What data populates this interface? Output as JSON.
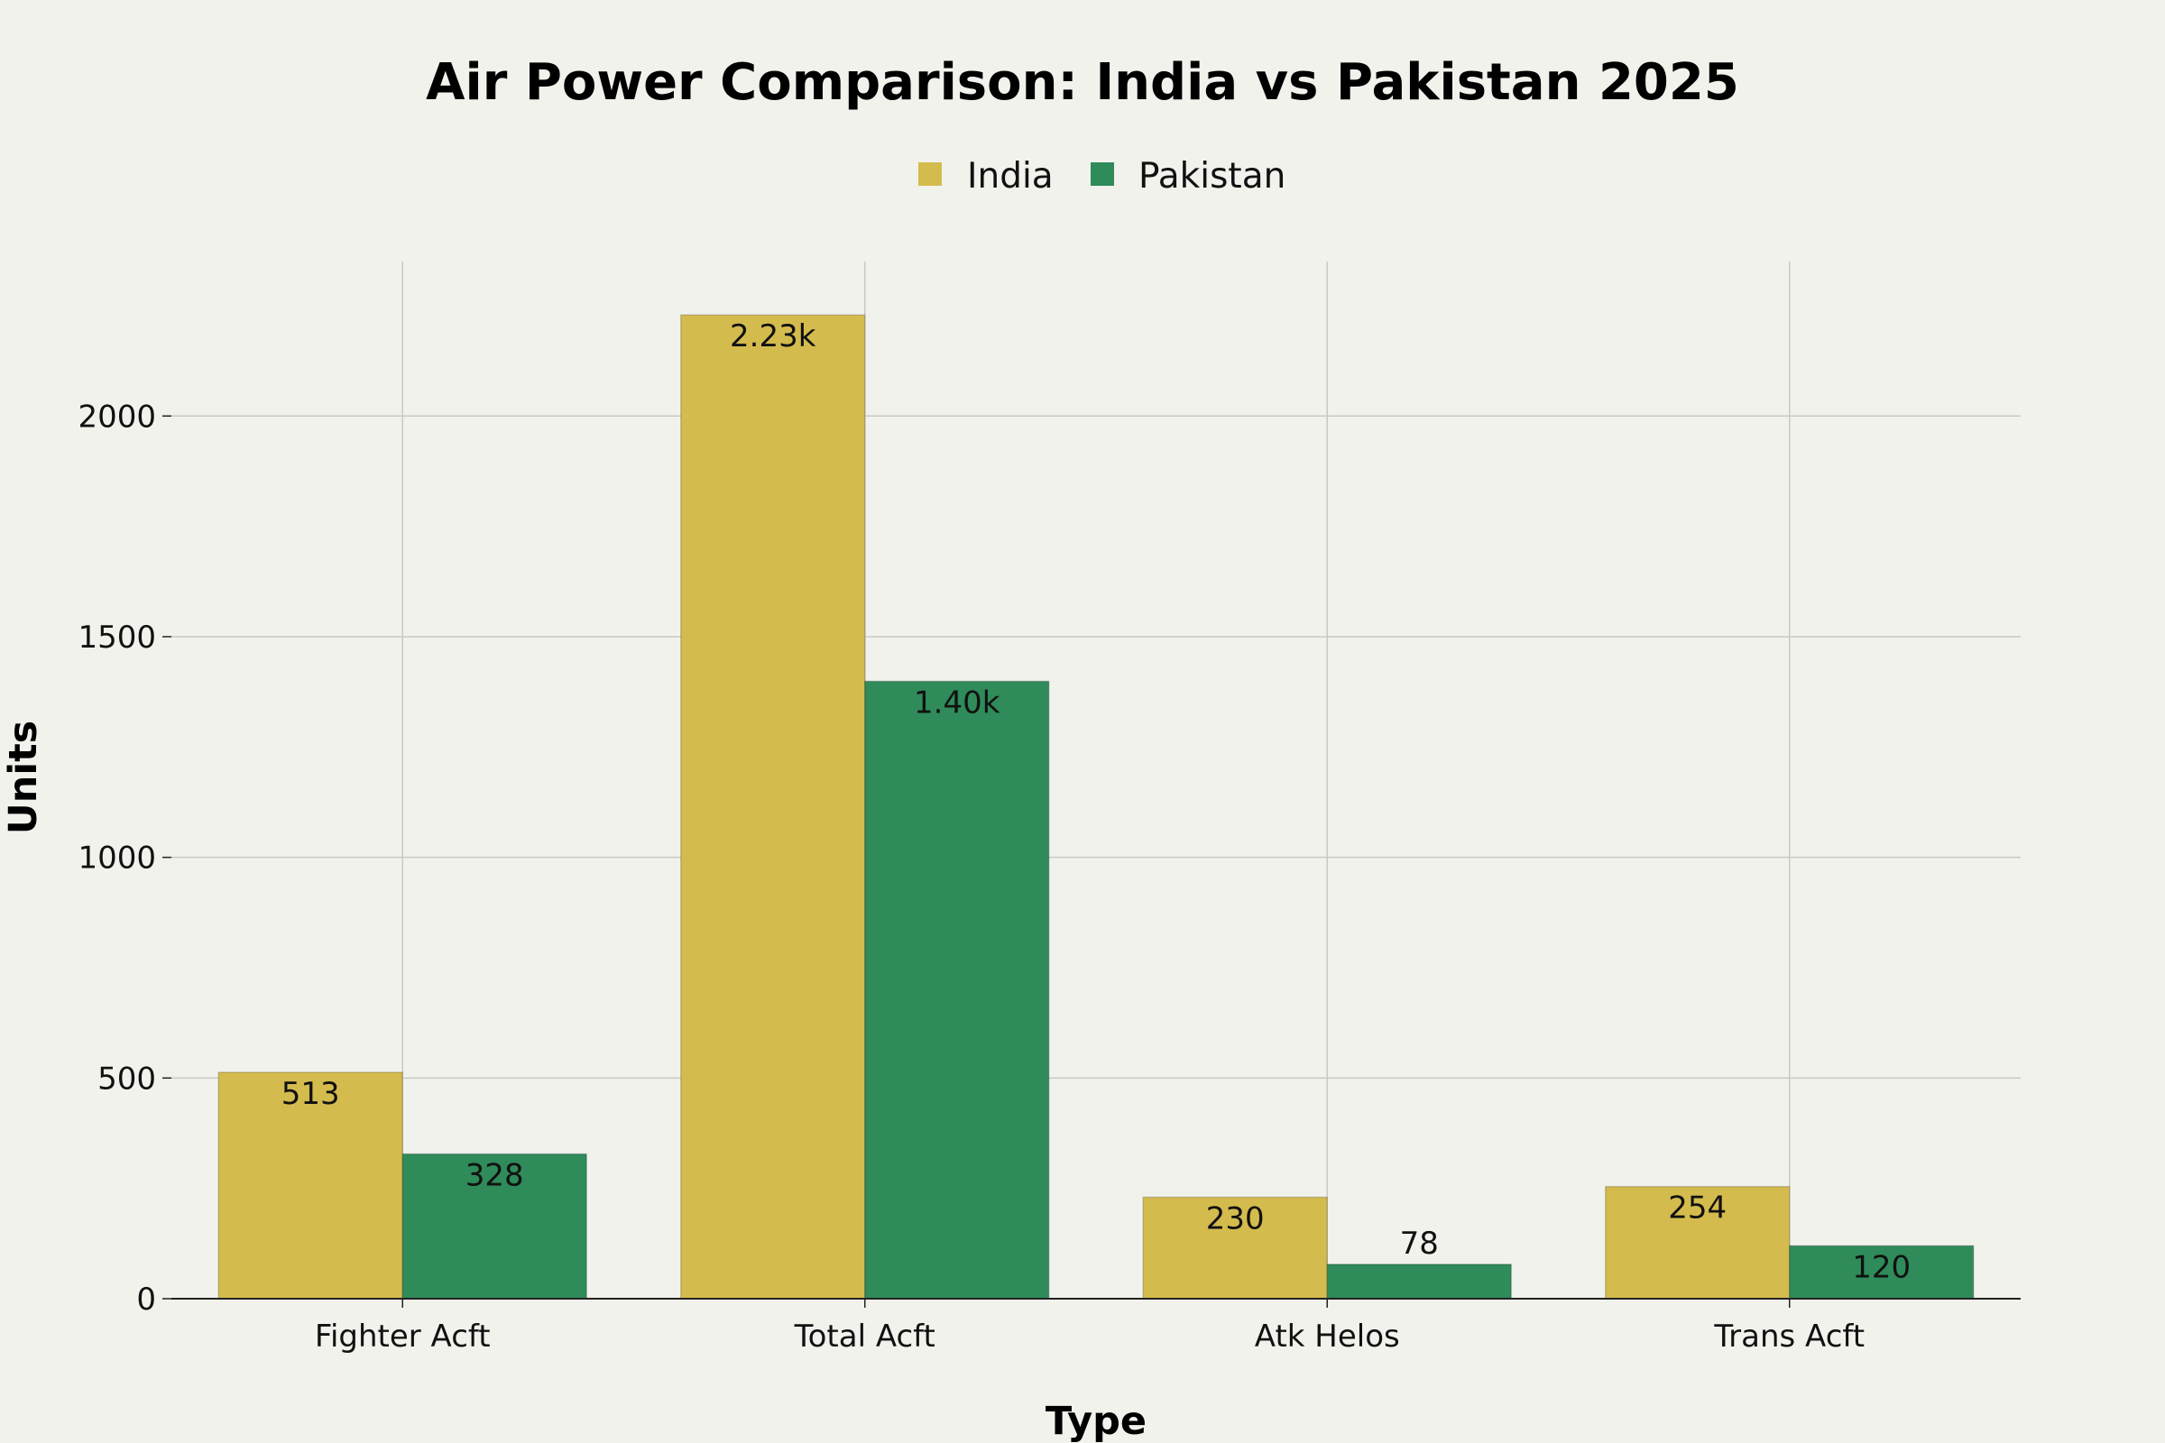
{
  "chart_data": {
    "type": "bar",
    "title": "Air Power Comparison: India vs Pakistan 2025",
    "xlabel": "Type",
    "ylabel": "Units",
    "categories": [
      "Fighter Acft",
      "Total Acft",
      "Atk Helos",
      "Trans Acft"
    ],
    "series": [
      {
        "name": "India",
        "color": "#d4bb4d",
        "values": [
          513,
          2229,
          230,
          254
        ],
        "labels": [
          "513",
          "2.23k",
          "230",
          "254"
        ]
      },
      {
        "name": "Pakistan",
        "color": "#2f8b59",
        "values": [
          328,
          1399,
          78,
          120
        ],
        "labels": [
          "328",
          "1.40k",
          "78",
          "120"
        ]
      }
    ],
    "ylim": [
      0,
      2350
    ],
    "yticks": [
      0,
      500,
      1000,
      1500,
      2000
    ],
    "grid": true,
    "legend_position": "top-center"
  }
}
